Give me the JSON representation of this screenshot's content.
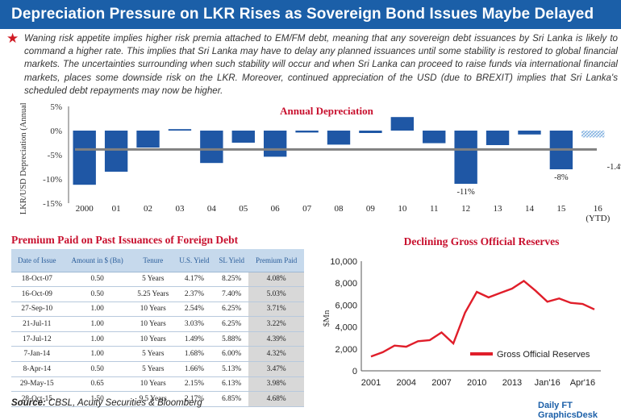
{
  "header": {
    "title": "Depreciation Pressure on LKR Rises as Sovereign Bond Issues Maybe Delayed"
  },
  "intro": {
    "text": "Waning risk appetite implies higher risk premia attached to EM/FM debt, meaning that any sovereign debt issuances by Sri Lanka is likely to command a higher rate. This implies that Sri Lanka may have to delay any planned issuances until some stability is restored to global financial markets. The uncertainties surrounding when such stability will occur and when Sri Lanka can proceed to raise funds via international financial markets, places some downside risk on the LKR. Moreover, continued appreciation of the USD (due to BREXIT) implies that Sri Lanka's scheduled debt repayments may now be higher."
  },
  "chart_data": [
    {
      "type": "bar",
      "title": "Annual Depreciation",
      "ylabel": "LKR/USD Depreciation (Annual)",
      "ylim": [
        -15,
        5
      ],
      "yticks": [
        "5%",
        "0%",
        "-5%",
        "-10%",
        "-15%"
      ],
      "categories": [
        "2000",
        "01",
        "02",
        "03",
        "04",
        "05",
        "06",
        "07",
        "08",
        "09",
        "10",
        "11",
        "12",
        "13",
        "14",
        "15",
        "16 (YTD)"
      ],
      "values": [
        -11.2,
        -8.5,
        -3.5,
        0.3,
        -6.7,
        -2.5,
        -5.4,
        -0.4,
        -2.9,
        -0.5,
        2.8,
        -2.6,
        -11.0,
        -3.0,
        -0.8,
        -8.0,
        -1.4
      ],
      "data_labels": {
        "12": "-11%",
        "15": "-8%",
        "16": "-1.4%"
      },
      "average_line": -3.9,
      "colors": {
        "bar": "#1f57a5",
        "ytd_hatch": "#7fb0e0",
        "average": "#808080",
        "title": "#c8102e"
      }
    },
    {
      "type": "line",
      "title": "Declining Gross Official Reserves",
      "ylabel": "$Mn",
      "ylim": [
        0,
        10000
      ],
      "yticks": [
        "0",
        "2,000",
        "4,000",
        "6,000",
        "8,000",
        "10,000"
      ],
      "x_labels": [
        "2001",
        "2004",
        "2007",
        "2010",
        "2013",
        "Jan'16",
        "Apr'16"
      ],
      "series": [
        {
          "name": "Gross Official Reserves",
          "color": "#e01e2a",
          "points": [
            [
              "2001",
              1300
            ],
            [
              "2002",
              1700
            ],
            [
              "2003",
              2300
            ],
            [
              "2004",
              2200
            ],
            [
              "2005",
              2700
            ],
            [
              "2006",
              2800
            ],
            [
              "2007",
              3500
            ],
            [
              "2008",
              2500
            ],
            [
              "2009",
              5300
            ],
            [
              "2010",
              7200
            ],
            [
              "2011",
              6700
            ],
            [
              "2012",
              7100
            ],
            [
              "2013",
              7500
            ],
            [
              "2014",
              8200
            ],
            [
              "2015",
              7300
            ],
            [
              "Jan'16",
              6300
            ],
            [
              "Feb'16",
              6600
            ],
            [
              "Mar'16",
              6200
            ],
            [
              "Apr'16",
              6100
            ],
            [
              "May'16",
              5600
            ]
          ]
        }
      ]
    }
  ],
  "debt_table": {
    "title": "Premium Paid on Past Issuances of  Foreign Debt",
    "headers": [
      "Date of Issue",
      "Amount in $ (Bn)",
      "Tenure",
      "U.S. Yield",
      "SL Yield",
      "Premium Paid"
    ],
    "rows": [
      [
        "18-Oct-07",
        "0.50",
        "5 Years",
        "4.17%",
        "8.25%",
        "4.08%"
      ],
      [
        "16-Oct-09",
        "0.50",
        "5.25 Years",
        "2.37%",
        "7.40%",
        "5.03%"
      ],
      [
        "27-Sep-10",
        "1.00",
        "10 Years",
        "2.54%",
        "6.25%",
        "3.71%"
      ],
      [
        "21-Jul-11",
        "1.00",
        "10 Years",
        "3.03%",
        "6.25%",
        "3.22%"
      ],
      [
        "17-Jul-12",
        "1.00",
        "10 Years",
        "1.49%",
        "5.88%",
        "4.39%"
      ],
      [
        "7-Jan-14",
        "1.00",
        "5 Years",
        "1.68%",
        "6.00%",
        "4.32%"
      ],
      [
        "8-Apr-14",
        "0.50",
        "5 Years",
        "1.66%",
        "5.13%",
        "3.47%"
      ],
      [
        "29-May-15",
        "0.65",
        "10 Years",
        "2.15%",
        "6.13%",
        "3.98%"
      ],
      [
        "28-Oct-15",
        "1.50",
        "9.5 Years",
        "2.17%",
        "6.85%",
        "4.68%"
      ]
    ]
  },
  "footer": {
    "source_label": "Source:",
    "source_text": " CBSL, Acuity Securities & Bloomberg",
    "brand": "Daily FT GraphicsDesk"
  }
}
